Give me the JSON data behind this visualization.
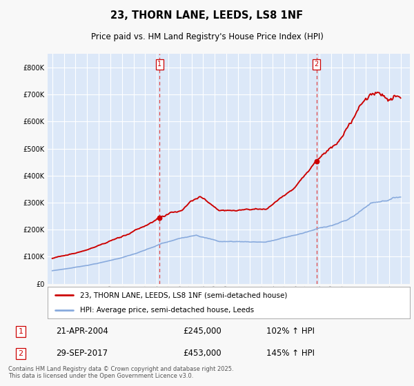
{
  "title1": "23, THORN LANE, LEEDS, LS8 1NF",
  "title2": "Price paid vs. HM Land Registry's House Price Index (HPI)",
  "bg_color": "#f8f8f8",
  "plot_bg": "#dce8f8",
  "grid_color": "#ffffff",
  "red_color": "#cc0000",
  "blue_color": "#88aadd",
  "dashed_color": "#dd4444",
  "purchase1_year": 2004.25,
  "purchase1_price": 245000,
  "purchase2_year": 2017.75,
  "purchase2_price": 453000,
  "ylim_max": 850000,
  "xlim_min": 1994.6,
  "xlim_max": 2025.8,
  "legend1": "23, THORN LANE, LEEDS, LS8 1NF (semi-detached house)",
  "legend2": "HPI: Average price, semi-detached house, Leeds",
  "label1_date": "21-APR-2004",
  "label1_price": "£245,000",
  "label1_hpi": "102% ↑ HPI",
  "label2_date": "29-SEP-2017",
  "label2_price": "£453,000",
  "label2_hpi": "145% ↑ HPI",
  "footer": "Contains HM Land Registry data © Crown copyright and database right 2025.\nThis data is licensed under the Open Government Licence v3.0.",
  "yticks": [
    0,
    100000,
    200000,
    300000,
    400000,
    500000,
    600000,
    700000,
    800000
  ],
  "xticks": [
    1995,
    1996,
    1997,
    1998,
    1999,
    2000,
    2001,
    2002,
    2003,
    2004,
    2005,
    2006,
    2007,
    2008,
    2009,
    2010,
    2011,
    2012,
    2013,
    2014,
    2015,
    2016,
    2017,
    2018,
    2019,
    2020,
    2021,
    2022,
    2023,
    2024,
    2025
  ]
}
